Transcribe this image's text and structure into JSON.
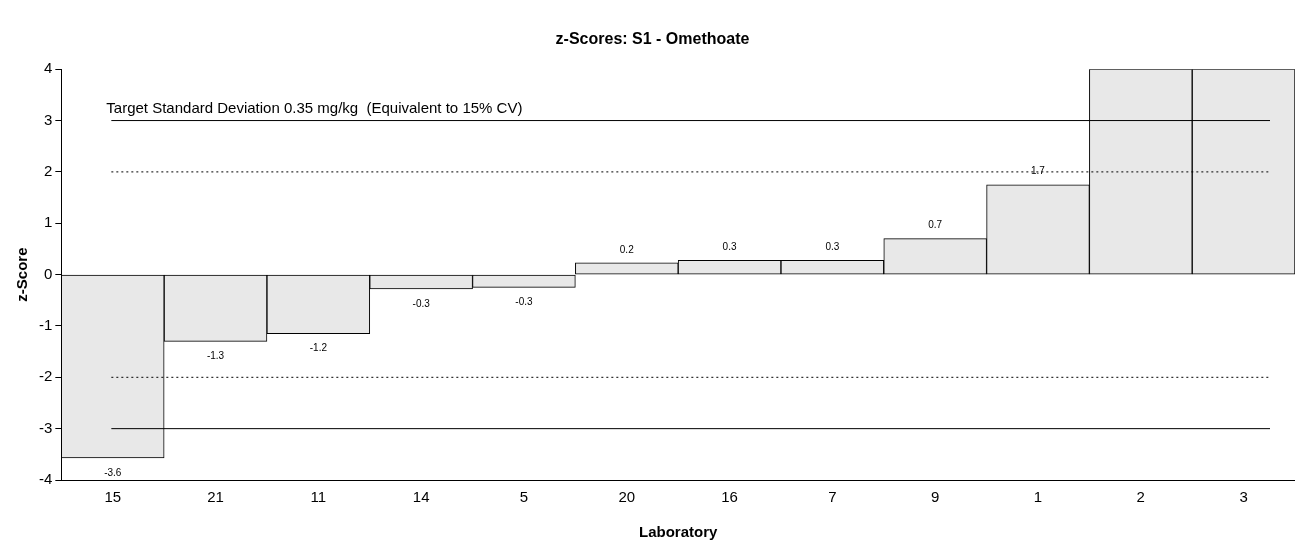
{
  "chart_data": {
    "type": "bar",
    "title": "z-Scores: S1 - Omethoate",
    "xlabel": "Laboratory",
    "ylabel": "z-Score",
    "categories": [
      "15",
      "21",
      "11",
      "14",
      "5",
      "20",
      "16",
      "7",
      "9",
      "1",
      "2",
      "3"
    ],
    "values": [
      -3.57,
      -1.3,
      -1.15,
      -0.28,
      -0.25,
      0.23,
      0.28,
      0.28,
      0.7,
      1.75,
      4,
      4
    ],
    "value_labels": [
      "-3.6",
      "-1.3",
      "-1.2",
      "-0.3",
      "-0.3",
      "0.2",
      "0.3",
      "0.3",
      "0.7",
      "1.7",
      null,
      null
    ],
    "color": "#e8e8e8",
    "ylim": [
      -4,
      4
    ],
    "yticks": [
      -4,
      -3,
      -2,
      -1,
      0,
      1,
      2,
      3,
      4
    ],
    "grid": false,
    "legend": false,
    "ref_lines": [
      {
        "axis": "y",
        "value": 3,
        "label": null,
        "color": "#000000",
        "line_style": "solid"
      },
      {
        "axis": "y",
        "value": 2,
        "label": null,
        "color": "#000000",
        "line_style": "dotted"
      },
      {
        "axis": "y",
        "value": -2,
        "label": null,
        "color": "#000000",
        "line_style": "dotted"
      },
      {
        "axis": "y",
        "value": -3,
        "label": null,
        "color": "#000000",
        "line_style": "solid"
      }
    ],
    "annotations": [
      "Target Standard Deviation 0.35 mg/kg  (Equivalent to 15% CV)"
    ]
  }
}
